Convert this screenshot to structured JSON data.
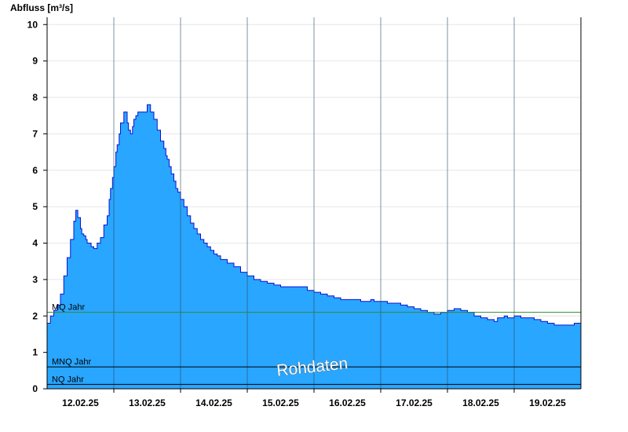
{
  "chart_data": {
    "type": "area",
    "ylabel": "Abfluss [m³/s]",
    "ylim": [
      0,
      10.2
    ],
    "yticks": [
      0,
      1,
      2,
      3,
      4,
      5,
      6,
      7,
      8,
      9,
      10
    ],
    "xlim": [
      11.5,
      19.5
    ],
    "day_ticks": [
      12.5,
      13.5,
      14.5,
      15.5,
      16.5,
      17.5,
      18.5
    ],
    "x_labels": [
      {
        "x": 12.0,
        "label": "12.02.25"
      },
      {
        "x": 13.0,
        "label": "13.02.25"
      },
      {
        "x": 14.0,
        "label": "14.02.25"
      },
      {
        "x": 15.0,
        "label": "15.02.25"
      },
      {
        "x": 16.0,
        "label": "16.02.25"
      },
      {
        "x": 17.0,
        "label": "17.02.25"
      },
      {
        "x": 18.0,
        "label": "18.02.25"
      },
      {
        "x": 19.0,
        "label": "19.02.25"
      }
    ],
    "grid": true,
    "fill_color": "#29a6ff",
    "line_color": "#0a14d2",
    "series": [
      {
        "x": [
          11.5,
          11.55,
          11.6,
          11.65,
          11.7,
          11.75,
          11.8,
          11.85,
          11.9,
          11.93,
          11.96,
          12.0,
          12.02,
          12.05,
          12.08,
          12.1,
          12.13,
          12.16,
          12.2,
          12.25,
          12.3,
          12.35,
          12.4,
          12.43,
          12.45,
          12.48,
          12.5,
          12.53,
          12.55,
          12.58,
          12.6,
          12.65,
          12.7,
          12.72,
          12.75,
          12.78,
          12.8,
          12.83,
          12.86,
          12.9,
          12.93,
          12.96,
          13.0,
          13.05,
          13.1,
          13.15,
          13.2,
          13.25,
          13.28,
          13.3,
          13.33,
          13.36,
          13.4,
          13.43,
          13.46,
          13.5,
          13.55,
          13.6,
          13.65,
          13.7,
          13.75,
          13.8,
          13.85,
          13.9,
          13.95,
          14.0,
          14.05,
          14.1,
          14.2,
          14.3,
          14.4,
          14.5,
          14.6,
          14.7,
          14.8,
          14.9,
          15.0,
          15.2,
          15.4,
          15.5,
          15.6,
          15.7,
          15.8,
          15.9,
          16.0,
          16.2,
          16.3,
          16.35,
          16.4,
          16.6,
          16.8,
          16.9,
          17.0,
          17.1,
          17.2,
          17.3,
          17.4,
          17.5,
          17.6,
          17.7,
          17.8,
          17.9,
          18.0,
          18.1,
          18.2,
          18.25,
          18.3,
          18.35,
          18.4,
          18.5,
          18.6,
          18.7,
          18.8,
          18.9,
          19.0,
          19.1,
          19.2,
          19.3,
          19.4,
          19.5
        ],
        "y": [
          1.8,
          2.0,
          2.15,
          2.3,
          2.6,
          3.1,
          3.6,
          4.1,
          4.6,
          4.9,
          4.7,
          4.4,
          4.25,
          4.2,
          4.1,
          4.0,
          4.0,
          3.9,
          3.85,
          4.0,
          4.15,
          4.5,
          4.75,
          5.2,
          5.5,
          5.8,
          6.1,
          6.5,
          6.7,
          7.0,
          7.3,
          7.6,
          7.3,
          7.1,
          7.0,
          7.2,
          7.4,
          7.5,
          7.6,
          7.6,
          7.6,
          7.6,
          7.8,
          7.6,
          7.4,
          7.1,
          6.8,
          6.6,
          6.4,
          6.3,
          6.1,
          5.9,
          5.7,
          5.5,
          5.4,
          5.2,
          5.0,
          4.75,
          4.55,
          4.4,
          4.25,
          4.1,
          4.0,
          3.9,
          3.8,
          3.7,
          3.65,
          3.55,
          3.45,
          3.35,
          3.2,
          3.1,
          3.0,
          2.95,
          2.9,
          2.85,
          2.8,
          2.8,
          2.7,
          2.65,
          2.6,
          2.55,
          2.5,
          2.45,
          2.45,
          2.4,
          2.4,
          2.45,
          2.4,
          2.35,
          2.3,
          2.25,
          2.2,
          2.15,
          2.1,
          2.05,
          2.1,
          2.15,
          2.2,
          2.15,
          2.1,
          2.0,
          1.95,
          1.9,
          1.85,
          1.95,
          1.95,
          2.0,
          1.95,
          2.0,
          1.95,
          1.95,
          1.9,
          1.85,
          1.8,
          1.75,
          1.75,
          1.75,
          1.8,
          1.8
        ]
      }
    ],
    "reference_lines": [
      {
        "label": "MQ Jahr",
        "y": 2.1,
        "color": "#2e8b2e"
      },
      {
        "label": "MNQ Jahr",
        "y": 0.6,
        "color": "#000000"
      },
      {
        "label": "NQ Jahr",
        "y": 0.12,
        "color": "#000000"
      }
    ],
    "watermark": "Rohdaten"
  }
}
